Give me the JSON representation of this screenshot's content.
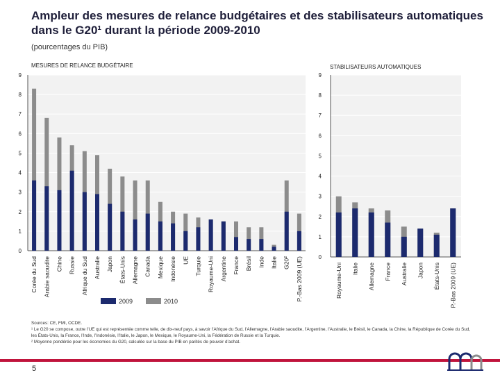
{
  "title": "Ampleur des mesures de relance budgétaires et des stabilisateurs automatiques dans le G20¹ durant la période 2009-2010",
  "subtitle": "(pourcentages du PIB)",
  "colors": {
    "s2009": "#1c2a6e",
    "s2010": "#8c8c8c",
    "axis": "#555555",
    "grid": "#ffffff"
  },
  "chart_data": [
    {
      "type": "bar",
      "title": "MESURES DE RELANCE BUDGÉTAIRE",
      "ylim": [
        0,
        9
      ],
      "yticks": [
        "0",
        "1",
        "2",
        "3",
        "4",
        "5",
        "6",
        "7",
        "8",
        "9"
      ],
      "categories": [
        "Corée du Sud",
        "Arabie saoudite",
        "Chine",
        "Russie",
        "Afrique du Sud",
        "Australie",
        "Japon",
        "États-Unis",
        "Allemagne",
        "Canada",
        "Mexique",
        "Indonésie",
        "UE",
        "Turquie",
        "Royaume-Uni",
        "Argentine",
        "France",
        "Brésil",
        "Inde",
        "Italie",
        "G20²",
        "P.-Bas 2009 (UE)"
      ],
      "series": [
        {
          "name": "2009",
          "values": [
            3.6,
            3.3,
            3.1,
            4.1,
            3.0,
            2.9,
            2.4,
            2.0,
            1.6,
            1.9,
            1.5,
            1.4,
            1.0,
            1.2,
            1.6,
            1.5,
            0.7,
            0.6,
            0.6,
            0.2,
            2.0,
            1.0
          ]
        },
        {
          "name": "2010",
          "values": [
            8.3,
            6.8,
            5.8,
            5.4,
            5.1,
            4.9,
            4.2,
            3.8,
            3.6,
            3.6,
            2.5,
            2.0,
            1.9,
            1.7,
            1.6,
            1.5,
            1.5,
            1.2,
            1.2,
            0.3,
            3.6,
            1.9
          ]
        }
      ],
      "legend": [
        "2009",
        "2010"
      ],
      "legend_position": "bottom"
    },
    {
      "type": "bar",
      "title": "STABILISATEURS AUTOMATIQUES",
      "ylim": [
        0,
        9
      ],
      "yticks": [
        "0",
        "1",
        "2",
        "3",
        "4",
        "5",
        "6",
        "7",
        "8",
        "9"
      ],
      "categories": [
        "Royaume-Uni",
        "Italie",
        "Allemagne",
        "France",
        "Australie",
        "Japon",
        "États-Unis",
        "P.-Bas 2009 (UE)"
      ],
      "series": [
        {
          "name": "2009",
          "values": [
            2.2,
            2.4,
            2.2,
            1.7,
            1.0,
            1.4,
            1.1,
            2.4
          ]
        },
        {
          "name": "2010",
          "values": [
            3.0,
            2.7,
            2.4,
            2.3,
            1.5,
            1.4,
            1.2,
            2.4
          ]
        }
      ]
    }
  ],
  "notes": {
    "sources": "Sources: CE, FMI, OCDE.",
    "note1": "¹ Le G20 se compose, outre l’UE qui est représentée comme telle, de dix-neuf pays, à savoir l’Afrique du Sud, l’Allemagne, l’Arabie saoudite, l’Argentine, l’Australie, le Brésil, le Canada, la Chine, la République de Corée du Sud, les États-Unis, la France, l’Inde, l’Indonésie, l’Italie, le Japon, le Mexique, le Royaume-Uni, la Fédération de Russie et la Turquie.",
    "note2": "² Moyenne pondérée pour les économies du G20, calculée sur la base du PIB en parités de pouvoir d’achat."
  },
  "page_number": "5"
}
